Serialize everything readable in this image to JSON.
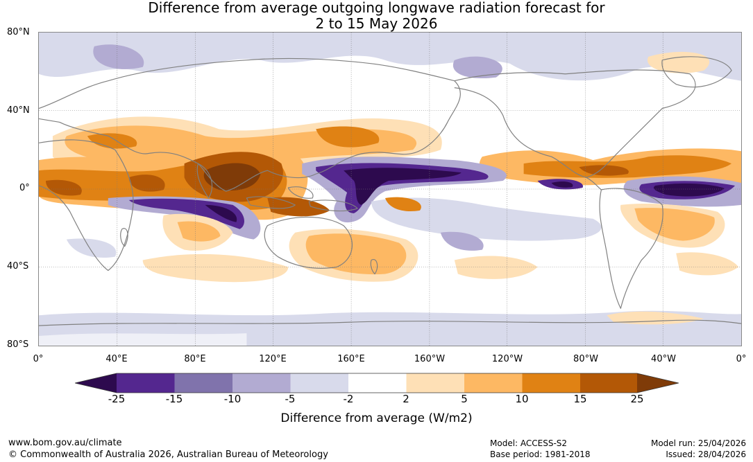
{
  "title_line1": "Difference from average outgoing longwave radiation forecast for",
  "title_line2": "2 to 15 May 2026",
  "lat_labels": [
    "80°N",
    "40°N",
    "0°",
    "40°S",
    "80°S"
  ],
  "lon_labels": [
    "0°",
    "40°E",
    "80°E",
    "120°E",
    "160°E",
    "160°W",
    "120°W",
    "80°W",
    "40°W",
    "0°"
  ],
  "colorbar": {
    "labels": [
      "-25",
      "-15",
      "-10",
      "-5",
      "-2",
      "2",
      "5",
      "10",
      "15",
      "25"
    ],
    "colors": [
      "#2d0a4e",
      "#54278f",
      "#8073ac",
      "#b2abd2",
      "#d8daeb",
      "#ffffff",
      "#fee0b6",
      "#fdb863",
      "#e08214",
      "#b35806",
      "#7f3b08"
    ],
    "title": "Difference from average (W/m2)"
  },
  "map": {
    "ocean_color": "#ffffff",
    "coast_color": "#808080"
  },
  "footer": {
    "url": "www.bom.gov.au/climate",
    "copyright": "© Commonwealth of Australia 2026, Australian Bureau of Meteorology",
    "model": "Model: ACCESS-S2",
    "base_period": "Base period: 1981-2018",
    "model_run": "Model run: 25/04/2026",
    "issued": "Issued: 28/04/2026"
  }
}
